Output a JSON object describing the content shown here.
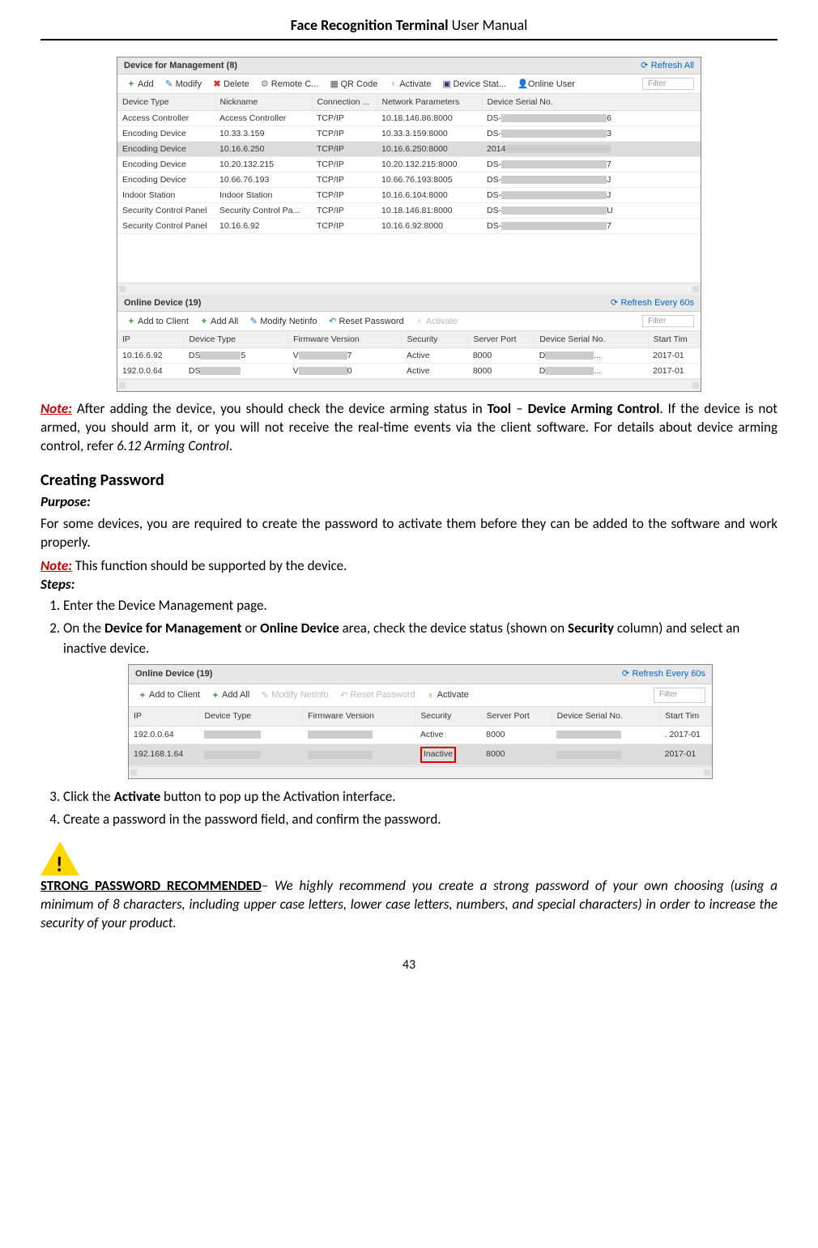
{
  "header": {
    "bold": "Face Recognition Terminal",
    "light": "  User Manual"
  },
  "screenshot1": {
    "panel1": {
      "title": "Device for Management (8)",
      "refresh": "Refresh All",
      "toolbar": {
        "add": "Add",
        "modify": "Modify",
        "delete": "Delete",
        "remote": "Remote C...",
        "qr": "QR Code",
        "activate": "Activate",
        "stat": "Device Stat...",
        "online": "Online User",
        "filter": "Filter"
      },
      "cols": [
        "Device Type",
        "Nickname",
        "Connection ...",
        "Network Parameters",
        "Device Serial No."
      ],
      "rows": [
        {
          "type": "Access Controller",
          "nick": "Access Controller",
          "conn": "TCP/IP",
          "net": "10.18.146.86:8000",
          "serial_pre": "DS-",
          "serial_suf": "6"
        },
        {
          "type": "Encoding Device",
          "nick": "10.33.3.159",
          "conn": "TCP/IP",
          "net": "10.33.3.159:8000",
          "serial_pre": "DS-",
          "serial_suf": "3"
        },
        {
          "type": "Encoding Device",
          "nick": "10.16.6.250",
          "conn": "TCP/IP",
          "net": "10.16.6.250:8000",
          "serial_pre": "2014",
          "serial_suf": "",
          "selected": true
        },
        {
          "type": "Encoding Device",
          "nick": "10.20.132.215",
          "conn": "TCP/IP",
          "net": "10.20.132.215:8000",
          "serial_pre": "DS-",
          "serial_suf": "7"
        },
        {
          "type": "Encoding Device",
          "nick": "10.66.76.193",
          "conn": "TCP/IP",
          "net": "10.66.76.193:8005",
          "serial_pre": "DS-",
          "serial_suf": "J"
        },
        {
          "type": "Indoor Station",
          "nick": "Indoor Station",
          "conn": "TCP/IP",
          "net": "10.16.6.104:8000",
          "serial_pre": "DS-",
          "serial_suf": "J"
        },
        {
          "type": "Security Control Panel",
          "nick": "Security Control Pa...",
          "conn": "TCP/IP",
          "net": "10.18.146.81:8000",
          "serial_pre": "DS-",
          "serial_suf": "U"
        },
        {
          "type": "Security Control Panel",
          "nick": "10.16.6.92",
          "conn": "TCP/IP",
          "net": "10.16.6.92:8000",
          "serial_pre": "DS-",
          "serial_suf": "7"
        }
      ]
    },
    "panel2": {
      "title": "Online Device (19)",
      "refresh": "Refresh Every 60s",
      "toolbar": {
        "addClient": "Add to Client",
        "addAll": "Add All",
        "modifyNet": "Modify Netinfo",
        "reset": "Reset Password",
        "activate": "Activate",
        "filter": "Filter"
      },
      "cols": [
        "IP",
        "Device Type",
        "Firmware Version",
        "Security",
        "Server Port",
        "Device Serial No.",
        "Start Tim"
      ],
      "rows": [
        {
          "ip": "10.16.6.92",
          "type": "DS",
          "typeSuf": "5",
          "fw": "V",
          "fwSuf": "7",
          "sec": "Active",
          "port": "8000",
          "serial": "D",
          "serialSuf": "...",
          "time": "2017-01"
        },
        {
          "ip": "192.0.0.64",
          "type": "DS",
          "typeSuf": "",
          "fw": "V",
          "fwSuf": "0",
          "sec": "Active",
          "port": "8000",
          "serial": "D",
          "serialSuf": "...",
          "time": "2017-01"
        }
      ]
    }
  },
  "noteText1": {
    "note": "Note:",
    "rest": " After adding the device, you should check the device arming status in ",
    "bold1": "Tool",
    "dash": " – ",
    "bold2": "Device Arming Control",
    "rest2": ". If the device is not armed, you should arm it, or you will not receive the real-time events via the client software. For details about device arming control, refer ",
    "italic": "6.12 Arming Control",
    "tail": "."
  },
  "sectionHeading": "Creating Password",
  "purposeLabel": "Purpose:",
  "purposeText": "For some devices, you are required to create the password to activate them before they can be added to the software and work properly.",
  "noteText2": {
    "note": "Note:",
    "rest": " This function should be supported by the device."
  },
  "stepsLabel": "Steps:",
  "step1": "Enter the Device Management page.",
  "step2": {
    "a": "On the ",
    "b": "Device for Management",
    "c": " or ",
    "d": "Online Device",
    "e": " area, check the device status (shown on ",
    "f": "Security",
    "g": " column) and select an inactive device."
  },
  "screenshot2": {
    "title": "Online Device (19)",
    "refresh": "Refresh Every 60s",
    "toolbar": {
      "addClient": "Add to Client",
      "addAll": "Add All",
      "modifyNet": "Modify Netinfo",
      "reset": "Reset Password",
      "activate": "Activate",
      "filter": "Filter"
    },
    "cols": [
      "IP",
      "Device Type",
      "Firmware Version",
      "Security",
      "Server Port",
      "Device Serial No.",
      "Start Tim"
    ],
    "rows": [
      {
        "ip": "192.0.0.64",
        "sec": "Active",
        "port": "8000",
        "time": ". 2017-01"
      },
      {
        "ip": "192.168.1.64",
        "sec": "Inactive",
        "port": "8000",
        "time": "2017-01",
        "inactive": true
      }
    ]
  },
  "step3": {
    "a": "Click the ",
    "b": "Activate",
    "c": " button to pop up the Activation interface."
  },
  "step4": "Create a password in the password field, and confirm the password.",
  "strongPwd": {
    "title": "STRONG PASSWORD RECOMMENDED",
    "body": "– We highly recommend you create a strong password of your own choosing (using a minimum of 8 characters, including upper case letters, lower case letters, numbers, and special characters) in order to increase the security of your product."
  },
  "pageNumber": "43"
}
